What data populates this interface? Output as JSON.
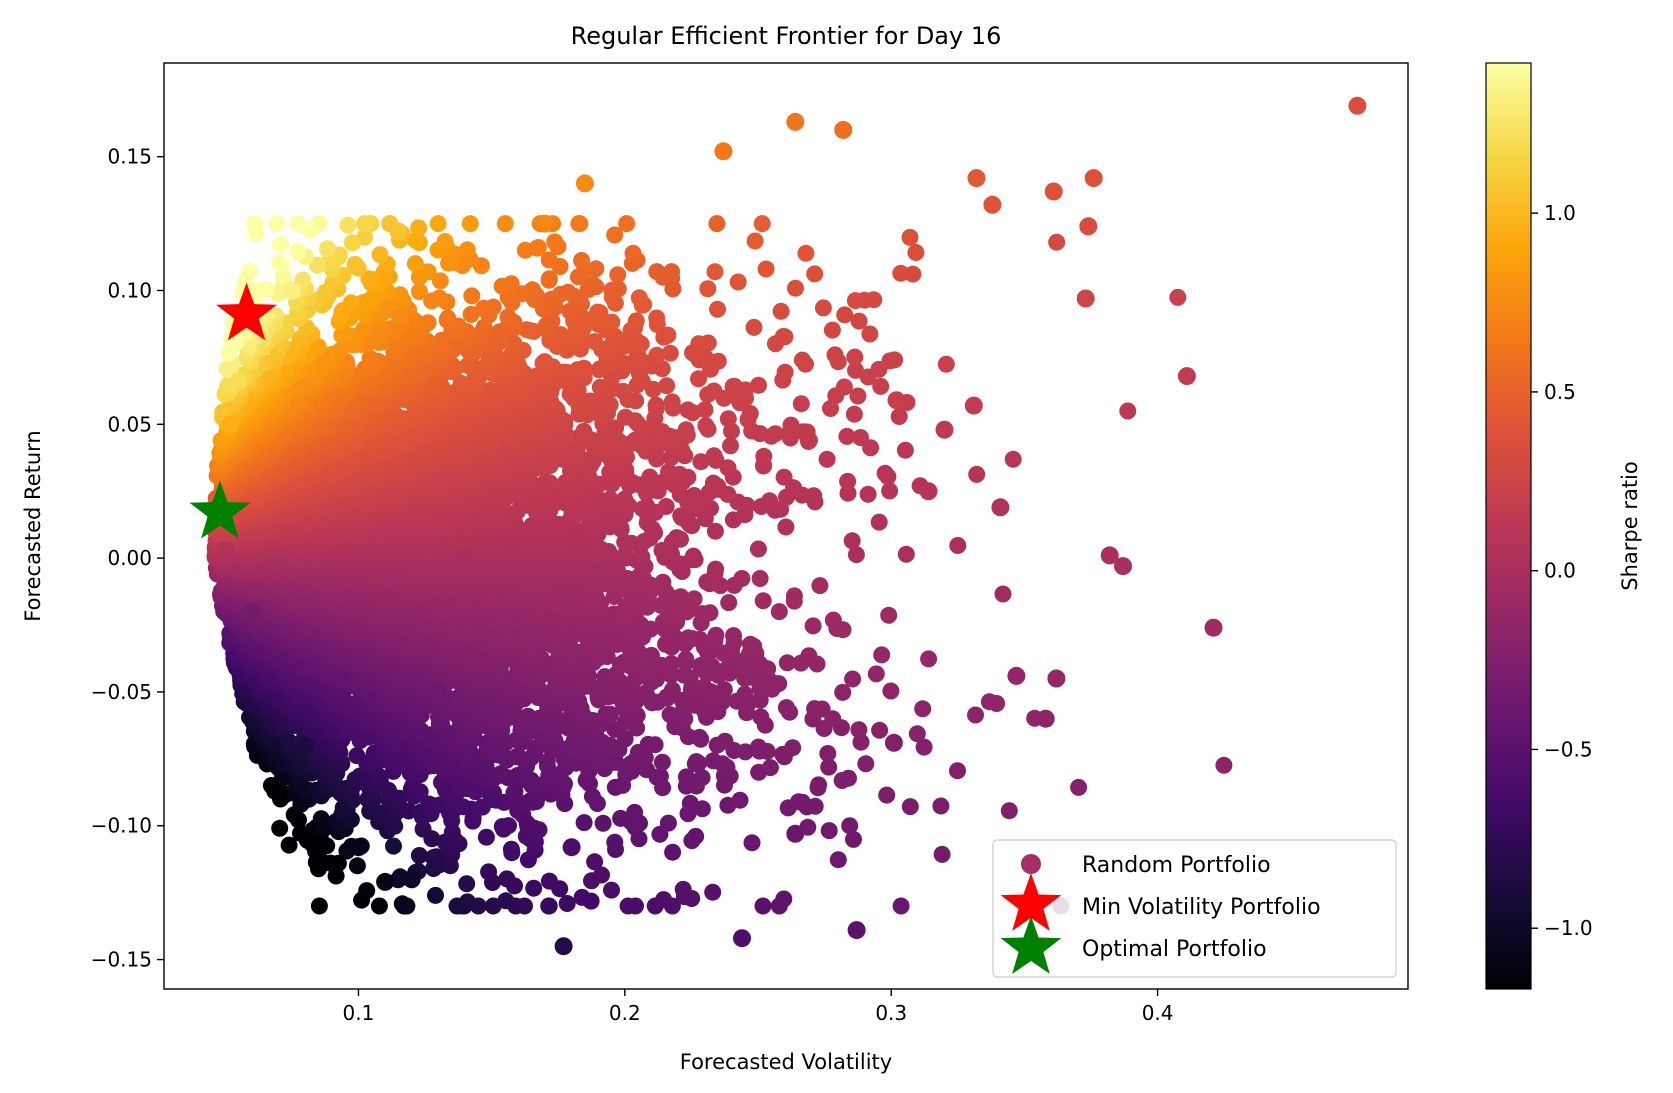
{
  "chart_data": {
    "type": "scatter",
    "title": "Regular Efficient Frontier for Day 16",
    "xlabel": "Forecasted Volatility",
    "ylabel": "Forecasted Return",
    "xlim": [
      0.027,
      0.494
    ],
    "ylim": [
      -0.161,
      0.185
    ],
    "xticks": [
      0.1,
      0.2,
      0.3,
      0.4
    ],
    "yticks": [
      -0.15,
      -0.1,
      -0.05,
      0.0,
      0.05,
      0.1,
      0.15
    ],
    "xtick_labels": [
      "0.1",
      "0.2",
      "0.3",
      "0.4"
    ],
    "ytick_labels": [
      "−0.15",
      "−0.10",
      "−0.05",
      "0.00",
      "0.05",
      "0.10",
      "0.15"
    ],
    "grid": false,
    "legend_position": "lower-right",
    "colormap": "inferno",
    "colorbar": {
      "label": "Sharpe ratio",
      "range": [
        -1.17,
        1.42
      ],
      "ticks": [
        -1.0,
        -0.5,
        0.0,
        0.5,
        1.0
      ],
      "tick_labels": [
        "−1.0",
        "−0.5",
        "0.0",
        "0.5",
        "1.0"
      ]
    },
    "series": [
      {
        "name": "Random Portfolio",
        "marker": "circle",
        "color": "#a82d64",
        "cloud_description_points": [
          {
            "x": 0.475,
            "y": 0.169,
            "sharpe": 0.35
          },
          {
            "x": 0.421,
            "y": -0.026,
            "sharpe": -0.06
          },
          {
            "x": 0.411,
            "y": 0.068,
            "sharpe": 0.16
          },
          {
            "x": 0.387,
            "y": -0.003,
            "sharpe": -0.01
          },
          {
            "x": 0.382,
            "y": 0.001,
            "sharpe": 0.0
          },
          {
            "x": 0.376,
            "y": 0.142,
            "sharpe": 0.38
          },
          {
            "x": 0.374,
            "y": 0.124,
            "sharpe": 0.33
          },
          {
            "x": 0.373,
            "y": 0.097,
            "sharpe": 0.26
          },
          {
            "x": 0.362,
            "y": -0.045,
            "sharpe": -0.12
          },
          {
            "x": 0.361,
            "y": 0.137,
            "sharpe": 0.38
          },
          {
            "x": 0.358,
            "y": -0.06,
            "sharpe": -0.17
          },
          {
            "x": 0.347,
            "y": -0.044,
            "sharpe": -0.13
          },
          {
            "x": 0.341,
            "y": 0.019,
            "sharpe": 0.06
          },
          {
            "x": 0.338,
            "y": 0.132,
            "sharpe": 0.39
          },
          {
            "x": 0.332,
            "y": 0.142,
            "sharpe": 0.43
          },
          {
            "x": 0.331,
            "y": 0.057,
            "sharpe": 0.17
          },
          {
            "x": 0.32,
            "y": 0.048,
            "sharpe": 0.15
          },
          {
            "x": 0.314,
            "y": 0.025,
            "sharpe": 0.08
          },
          {
            "x": 0.301,
            "y": -0.069,
            "sharpe": -0.23
          },
          {
            "x": 0.302,
            "y": 0.059,
            "sharpe": 0.2
          },
          {
            "x": 0.287,
            "y": -0.139,
            "sharpe": -0.48
          },
          {
            "x": 0.282,
            "y": 0.16,
            "sharpe": 0.57
          },
          {
            "x": 0.264,
            "y": 0.163,
            "sharpe": 0.62
          },
          {
            "x": 0.264,
            "y": -0.103,
            "sharpe": -0.39
          },
          {
            "x": 0.244,
            "y": -0.142,
            "sharpe": -0.58
          },
          {
            "x": 0.237,
            "y": 0.152,
            "sharpe": 0.64
          },
          {
            "x": 0.177,
            "y": -0.145,
            "sharpe": -0.82
          },
          {
            "x": 0.18,
            "y": -0.108,
            "sharpe": -0.6
          },
          {
            "x": 0.15,
            "y": -0.09,
            "sharpe": -0.6
          },
          {
            "x": 0.12,
            "y": -0.12,
            "sharpe": -1.0
          },
          {
            "x": 0.11,
            "y": -0.121,
            "sharpe": -1.1
          },
          {
            "x": 0.1,
            "y": -0.108,
            "sharpe": -1.08
          },
          {
            "x": 0.08,
            "y": -0.07,
            "sharpe": -0.88
          },
          {
            "x": 0.06,
            "y": -0.02,
            "sharpe": -0.33
          },
          {
            "x": 0.05,
            "y": 0.003,
            "sharpe": 0.06
          },
          {
            "x": 0.052,
            "y": 0.05,
            "sharpe": 0.96
          },
          {
            "x": 0.055,
            "y": 0.066,
            "sharpe": 1.2
          },
          {
            "x": 0.075,
            "y": 0.1,
            "sharpe": 1.33
          },
          {
            "x": 0.115,
            "y": 0.122,
            "sharpe": 1.06
          },
          {
            "x": 0.17,
            "y": 0.125,
            "sharpe": 0.73
          },
          {
            "x": 0.185,
            "y": 0.14,
            "sharpe": 0.76
          },
          {
            "x": 0.15,
            "y": 0.05,
            "sharpe": 0.33
          },
          {
            "x": 0.14,
            "y": 0.0,
            "sharpe": 0.0
          },
          {
            "x": 0.13,
            "y": -0.05,
            "sharpe": -0.38
          }
        ]
      },
      {
        "name": "Min Volatility Portfolio",
        "marker": "star",
        "color": "#ff0000",
        "points": [
          {
            "x": 0.058,
            "y": 0.091
          }
        ]
      },
      {
        "name": "Optimal Portfolio",
        "marker": "star",
        "color": "#008000",
        "points": [
          {
            "x": 0.048,
            "y": 0.017
          }
        ]
      }
    ],
    "legend": [
      {
        "label": "Random Portfolio",
        "marker": "circle",
        "color": "#a82d64"
      },
      {
        "label": "Min Volatility Portfolio",
        "marker": "star",
        "color": "#ff0000"
      },
      {
        "label": "Optimal Portfolio",
        "marker": "star",
        "color": "#008000"
      }
    ]
  }
}
